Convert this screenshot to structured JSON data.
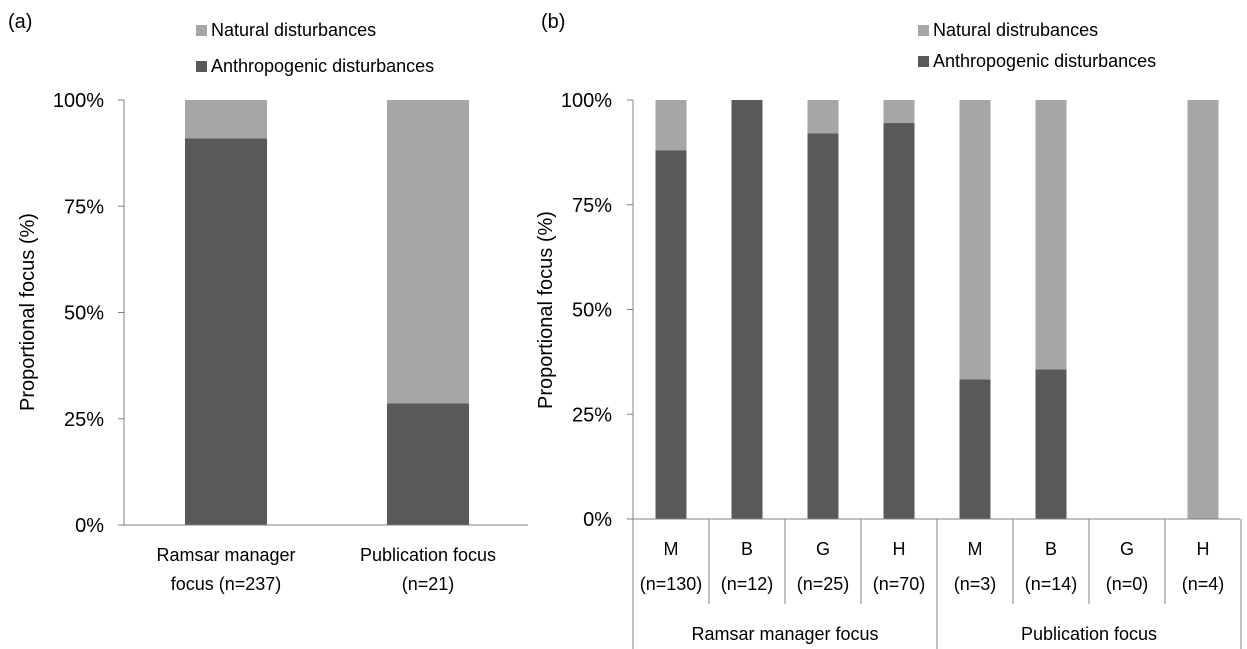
{
  "colors": {
    "natural": "#a6a6a6",
    "anthropogenic": "#595959",
    "axis": "#808080"
  },
  "chart_data": [
    {
      "type": "bar",
      "stacked": true,
      "panel_label": "(a)",
      "ylabel": "Proportional focus (%)",
      "yticks": [
        "0%",
        "25%",
        "50%",
        "75%",
        "100%"
      ],
      "ylim": [
        0,
        100
      ],
      "legend": [
        "Natural disturbances",
        "Anthropogenic disturbances"
      ],
      "categories": [
        [
          "Ramsar manager",
          "focus (n=237)"
        ],
        [
          "Publication focus",
          "(n=21)"
        ]
      ],
      "series": [
        {
          "name": "Anthropogenic disturbances",
          "values": [
            91,
            28.6
          ]
        },
        {
          "name": "Natural disturbances",
          "values": [
            9,
            71.4
          ]
        }
      ]
    },
    {
      "type": "bar",
      "stacked": true,
      "panel_label": "(b)",
      "ylabel": "Proportional focus (%)",
      "yticks": [
        "0%",
        "25%",
        "50%",
        "75%",
        "100%"
      ],
      "ylim": [
        0,
        100
      ],
      "legend": [
        "Natural distrubances",
        "Anthropogenic disturbances"
      ],
      "categories": [
        [
          "M",
          "(n=130)"
        ],
        [
          "B",
          "(n=12)"
        ],
        [
          "G",
          "(n=25)"
        ],
        [
          "H",
          "(n=70)"
        ],
        [
          "M",
          "(n=3)"
        ],
        [
          "B",
          "(n=14)"
        ],
        [
          "G",
          "(n=0)"
        ],
        [
          "H",
          "(n=4)"
        ]
      ],
      "groups": [
        "Ramsar manager focus",
        "Publication focus"
      ],
      "series": [
        {
          "name": "Anthropogenic disturbances",
          "values": [
            88,
            100,
            92,
            94.5,
            33.3,
            35.7,
            0,
            0
          ]
        },
        {
          "name": "Natural disturbances",
          "values": [
            12,
            0,
            8,
            5.5,
            66.7,
            64.3,
            0,
            100
          ]
        }
      ]
    }
  ]
}
